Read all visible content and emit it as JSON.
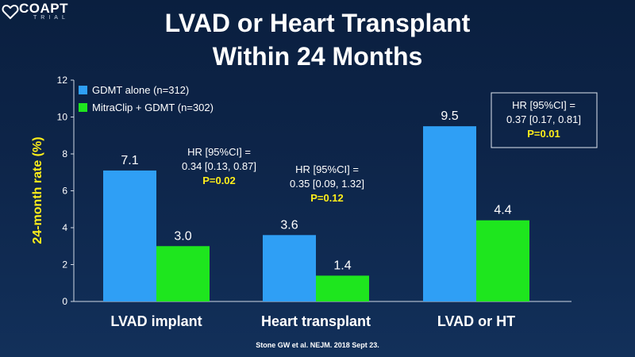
{
  "logo": {
    "text": "COAPT",
    "sub": "TRIAL",
    "icon": "heart-outline-icon"
  },
  "title_lines": [
    "LVAD or Heart Transplant",
    "Within 24 Months"
  ],
  "footer": "Stone GW et al. NEJM. 2018 Sept 23.",
  "colors": {
    "gdmt": "#2f9ff5",
    "mitraclip": "#1ee61e",
    "hr_text": "#ffffff",
    "p_text": "#ffef1a",
    "ylabel": "#ffef1a"
  },
  "chart_data": {
    "type": "bar",
    "title": "LVAD or Heart Transplant Within 24 Months",
    "xlabel": "",
    "ylabel": "24-month rate (%)",
    "ylim": [
      0,
      12
    ],
    "yticks": [
      0,
      2,
      4,
      6,
      8,
      10,
      12
    ],
    "grid": false,
    "legend_position": "top-left",
    "categories": [
      "LVAD implant",
      "Heart transplant",
      "LVAD or HT"
    ],
    "series": [
      {
        "name": "GDMT alone (n=312)",
        "values": [
          7.1,
          3.6,
          9.5
        ],
        "labels": [
          "7.1",
          "3.6",
          "9.5"
        ]
      },
      {
        "name": "MitraClip + GDMT (n=302)",
        "values": [
          3.0,
          1.4,
          4.4
        ],
        "labels": [
          "3.0",
          "1.4",
          "4.4"
        ]
      }
    ],
    "annotations": [
      {
        "category": "LVAD implant",
        "hr_label": "HR [95%CI] =",
        "hr_value": "0.34 [0.13, 0.87]",
        "p": "P=0.02",
        "boxed": false
      },
      {
        "category": "Heart transplant",
        "hr_label": "HR [95%CI] =",
        "hr_value": "0.35 [0.09, 1.32]",
        "p": "P=0.12",
        "boxed": false
      },
      {
        "category": "LVAD or HT",
        "hr_label": "HR [95%CI] =",
        "hr_value": "0.37 [0.17, 0.81]",
        "p": "P=0.01",
        "boxed": true
      }
    ]
  }
}
